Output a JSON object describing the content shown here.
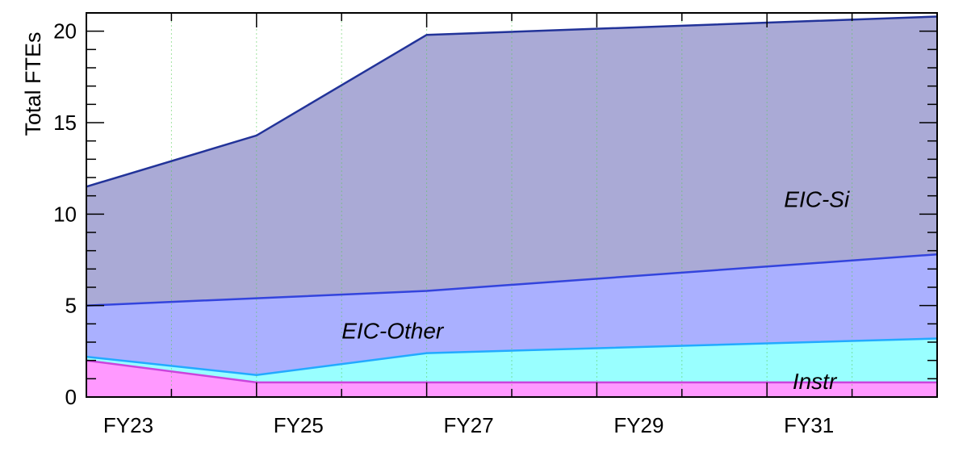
{
  "chart_data": {
    "type": "area",
    "stacked": true,
    "title": "",
    "xlabel": "",
    "ylabel": "Total FTEs",
    "x": [
      2023,
      2025,
      2027,
      2033
    ],
    "x_range": [
      2023,
      2033
    ],
    "xticks": [
      {
        "value": 2023,
        "label": "FY23"
      },
      {
        "value": 2025,
        "label": "FY25"
      },
      {
        "value": 2027,
        "label": "FY27"
      },
      {
        "value": 2029,
        "label": "FY29"
      },
      {
        "value": 2031,
        "label": "FY31"
      }
    ],
    "ylim": [
      0,
      21
    ],
    "yticks": [
      0,
      5,
      10,
      15,
      20
    ],
    "grid": {
      "x_minor": true,
      "y": false
    },
    "series": [
      {
        "name": "Instr",
        "values": [
          2.0,
          0.8,
          0.8,
          0.8
        ],
        "color": "#ff99ff",
        "line": "#cc44dd"
      },
      {
        "name": "",
        "values": [
          0.2,
          0.4,
          1.6,
          2.4
        ],
        "color": "#99ffff",
        "line": "#22aaff"
      },
      {
        "name": "EIC-Other",
        "values": [
          2.8,
          4.2,
          3.4,
          4.6
        ],
        "color": "#aab0ff",
        "line": "#3344dd"
      },
      {
        "name": "EIC-Si",
        "values": [
          6.5,
          8.9,
          14.0,
          13.0
        ],
        "color": "#aaaad6",
        "line": "#223399"
      }
    ],
    "annotations": [
      {
        "text": "EIC-Si",
        "x": 2031.2,
        "y": 10.4
      },
      {
        "text": "EIC-Other",
        "x": 2026.0,
        "y": 3.2
      },
      {
        "text": "Instr",
        "x": 2031.3,
        "y": 0.45
      }
    ]
  }
}
